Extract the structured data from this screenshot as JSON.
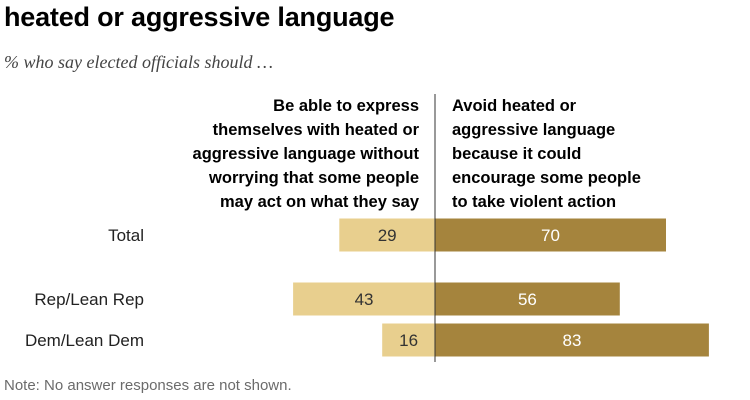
{
  "header": {
    "title": "heated or aggressive language",
    "subtitle": "% who say elected officials should …"
  },
  "legend": {
    "left_lines": [
      "Be able to express",
      "themselves with heated or",
      "aggressive language without",
      "worrying that some people",
      "may act on what they say"
    ],
    "right_lines": [
      "Avoid heated or",
      "aggressive language",
      "because it could",
      "encourage some people",
      "to take violent action"
    ]
  },
  "footnote": "Note: No answer responses are not shown.",
  "colors": {
    "left": "#e8cf8e",
    "right": "#a5843d",
    "left_value_text": "#333333",
    "right_value_text": "#ffffff",
    "axis": "#333333"
  },
  "chart_data": {
    "type": "bar",
    "orientation": "horizontal-diverging",
    "categories": [
      "Total",
      "Rep/Lean Rep",
      "Dem/Lean Dem"
    ],
    "series": [
      {
        "name": "Be able to express themselves with heated or aggressive language without worrying that some people may act on what they say",
        "values": [
          29,
          43,
          16
        ]
      },
      {
        "name": "Avoid heated or aggressive language because it could encourage some people to take violent action",
        "values": [
          70,
          56,
          83
        ]
      }
    ],
    "title": "heated or aggressive language",
    "subtitle": "% who say elected officials should …",
    "xlabel": "",
    "ylabel": "",
    "xlim": [
      0,
      100
    ]
  }
}
